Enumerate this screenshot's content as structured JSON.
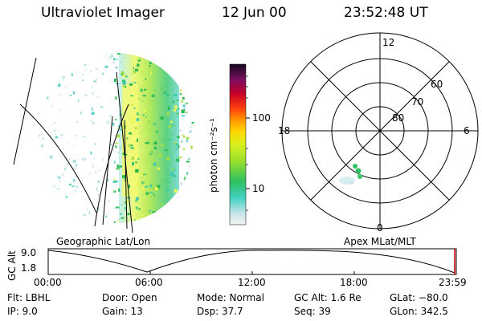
{
  "header": {
    "instrument": "Ultraviolet Imager",
    "date": "12 Jun 00",
    "time": "23:52:48 UT"
  },
  "colorbar": {
    "unit_label": "photon cm⁻²s⁻¹",
    "ticks": [
      "100",
      "10"
    ]
  },
  "polar_plot": {
    "mlt_labels": [
      "12",
      "18",
      "6",
      "0"
    ],
    "lat_labels": [
      "60",
      "70",
      "80"
    ]
  },
  "panel_labels": {
    "left": "Geographic Lat/Lon",
    "right": "Apex MLat/MLT"
  },
  "altitude_plot": {
    "ylabel": "GC Alt",
    "yticks": [
      "9.0",
      "1.8"
    ],
    "xticks": [
      "00:00",
      "06:00",
      "12:00",
      "18:00",
      "23:59"
    ]
  },
  "info": {
    "row1": {
      "flt": "Flt: LBHL",
      "door": "Door: Open",
      "mode": "Mode: Normal",
      "gcalt": "GC Alt: 1.6 Re",
      "glat": "GLat: −80.0"
    },
    "row2": {
      "ip": "IP:  9.0",
      "gain": "Gain: 13",
      "dsp": "Dsp:   37.7",
      "seq": "Seq: 39",
      "glon": "GLon: 342.5"
    }
  },
  "colors": {
    "background": "#ffffff",
    "foreground": "#000000"
  }
}
